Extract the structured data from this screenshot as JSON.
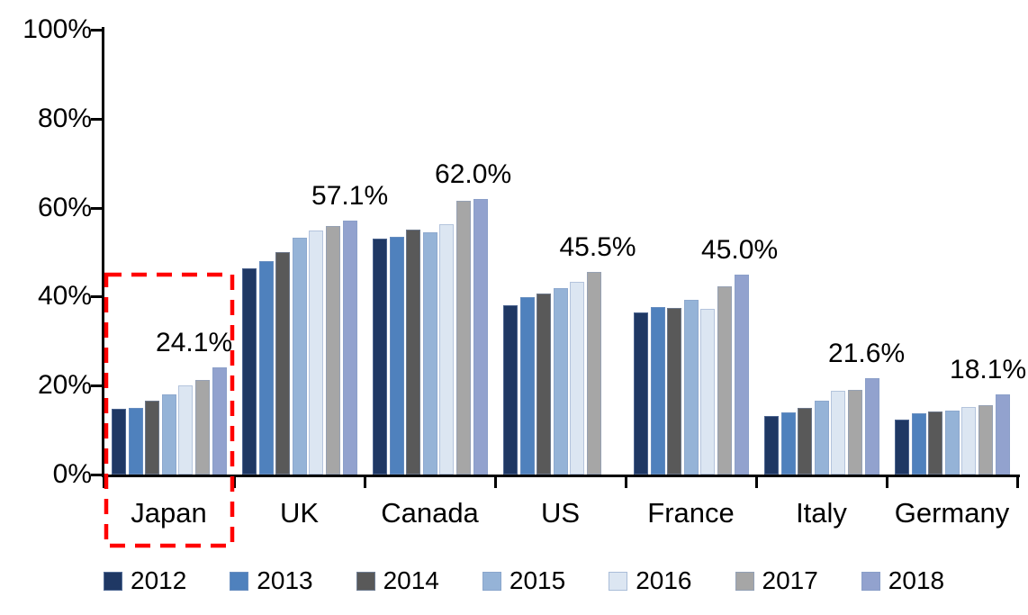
{
  "chart_data": {
    "type": "bar",
    "title": "",
    "categories": [
      "Japan",
      "UK",
      "Canada",
      "US",
      "France",
      "Italy",
      "Germany"
    ],
    "series": [
      {
        "name": "2012",
        "color": "#1F3864",
        "values": [
          14.8,
          46.3,
          53.0,
          38.0,
          36.5,
          13.2,
          12.3
        ]
      },
      {
        "name": "2013",
        "color": "#4F81BD",
        "values": [
          15.0,
          47.9,
          53.4,
          39.8,
          37.6,
          13.9,
          13.8
        ]
      },
      {
        "name": "2014",
        "color": "#595959",
        "values": [
          16.7,
          50.0,
          55.0,
          40.7,
          37.5,
          14.9,
          14.1
        ]
      },
      {
        "name": "2015",
        "color": "#95B3D7",
        "values": [
          18.1,
          53.3,
          54.5,
          41.9,
          39.2,
          16.6,
          14.4
        ]
      },
      {
        "name": "2016",
        "color": "#DCE6F2",
        "values": [
          20.0,
          54.8,
          56.3,
          43.4,
          37.2,
          18.8,
          15.1
        ]
      },
      {
        "name": "2017",
        "color": "#A6A6A6",
        "values": [
          21.2,
          55.9,
          61.5,
          45.5,
          42.3,
          19.0,
          15.6
        ]
      },
      {
        "name": "2018",
        "color": "#92A2CE",
        "values": [
          24.1,
          57.1,
          62.0,
          null,
          45.0,
          21.6,
          18.1
        ]
      }
    ],
    "peak_labels": [
      "24.1%",
      "57.1%",
      "62.0%",
      "45.5%",
      "45.0%",
      "21.6%",
      "18.1%"
    ],
    "y_axis": {
      "min": 0,
      "max": 100,
      "ticks": [
        {
          "label": "0%",
          "value": 0
        },
        {
          "label": "20%",
          "value": 20
        },
        {
          "label": "40%",
          "value": 40
        },
        {
          "label": "60%",
          "value": 60
        },
        {
          "label": "80%",
          "value": 80
        },
        {
          "label": "100%",
          "value": 100
        }
      ]
    },
    "legend": [
      "2012",
      "2013",
      "2014",
      "2015",
      "2016",
      "2017",
      "2018"
    ],
    "legend_position": "bottom",
    "grid": false,
    "highlight": {
      "category": "Japan",
      "shape": "dashed-rectangle",
      "color": "#FF0000"
    }
  }
}
